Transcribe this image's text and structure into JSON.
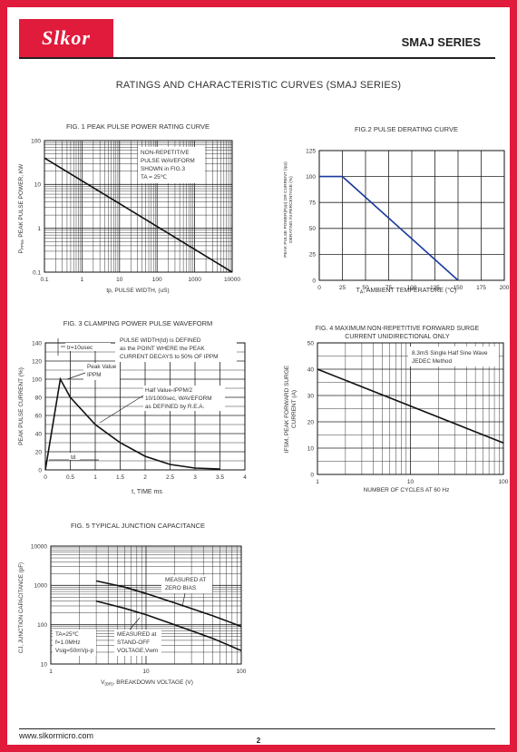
{
  "header": {
    "logo_text": "Slkor",
    "series_title": "SMAJ SERIES"
  },
  "section_heading": "RATINGS AND CHARACTERISTIC CURVES (SMAJ SERIES)",
  "footer": {
    "url": "www.slkormicro.com",
    "page_number": "2"
  },
  "chart_data": [
    {
      "id": "fig1",
      "type": "line",
      "title": "FIG. 1 PEAK PULSE POWER RATING CURVE",
      "xlabel_prefix": "tp, PULSE WIDTH, (uS)",
      "ylabel": "P",
      "ylabel_sub": "PPM",
      "ylabel_rest": ", PEAK PULSE POWER, KW",
      "xscale": "log",
      "yscale": "log",
      "xlim": [
        0.1,
        10000
      ],
      "ylim": [
        0.1,
        100
      ],
      "x_ticks": [
        "0.1",
        "1",
        "10",
        "100",
        "1000",
        "10000"
      ],
      "y_ticks": [
        "0.1",
        "1",
        "10",
        "100"
      ],
      "series": [
        {
          "x": [
            0.1,
            10000
          ],
          "y": [
            40,
            0.1
          ]
        }
      ],
      "annotation": [
        "NON-REPETITIVE",
        "PULSE WAVEFORM",
        "SHOWN in FIG.3",
        "TA = 25℃"
      ]
    },
    {
      "id": "fig2",
      "type": "line",
      "title": "FIG.2 PULSE DERATING CURVE",
      "xlabel_main": "T",
      "xlabel_sub": "A",
      "xlabel_rest": ", AMBIENT TEMPERATURE (°C)",
      "ylabel_line1": "PEAK PULSE POWER(Ppp) OR CURRENT (Ipp)",
      "ylabel_line2": "DERATING IN PERCENTAGE (%)",
      "xlim": [
        0,
        200
      ],
      "ylim": [
        0,
        125
      ],
      "x_ticks": [
        "0",
        "25",
        "50",
        "75",
        "100",
        "125",
        "150",
        "175",
        "200"
      ],
      "y_ticks": [
        "0",
        "25",
        "50",
        "75",
        "100",
        "125"
      ],
      "series": [
        {
          "x": [
            0,
            25,
            150
          ],
          "y": [
            100,
            100,
            0
          ]
        }
      ]
    },
    {
      "id": "fig3",
      "type": "line",
      "title": "FIG. 3 CLAMPING POWER PULSE WAVEFORM",
      "xlabel": "t, TIME ms",
      "ylabel": "PEAK PULSE CURRENT (%)",
      "xlim": [
        0,
        4
      ],
      "ylim": [
        0,
        140
      ],
      "x_ticks": [
        "0",
        "0.5",
        "1",
        "1.5",
        "2",
        "2.5",
        "3",
        "3.5",
        "4"
      ],
      "y_ticks": [
        "0",
        "20",
        "40",
        "60",
        "80",
        "100",
        "120",
        "140"
      ],
      "series": [
        {
          "x": [
            0,
            0.3,
            0.5,
            1,
            1.5,
            2,
            2.5,
            3,
            3.5
          ],
          "y": [
            0,
            100,
            80,
            50,
            30,
            15,
            6,
            2,
            1
          ]
        }
      ],
      "annotations": {
        "tr": "tr=10usec",
        "pulse_width": [
          "PULSE WIDTH(td) is DEFINED",
          "as the POINT WHERE the PEAK",
          "CURRENT DECAYS to 50% OF IPPM"
        ],
        "peak": [
          "Peak Value",
          "IPPM"
        ],
        "half": [
          "Half Value-IPPM/2",
          "10/1000sec, WAVEFORM",
          "as DEFINED by R.E.A."
        ],
        "td": "td"
      }
    },
    {
      "id": "fig4",
      "type": "line",
      "title": [
        "FIG. 4 MAXIMUM  NON-REPETITIVE FORWARD SURGE",
        "CURRENT UNIDIRECTIONAL ONLY"
      ],
      "xlabel": "NUMBER OF CYCLES AT 60 Hz",
      "ylabel": [
        "IFSM, PEAK FORWARD SURGE",
        "CURRENT (A)"
      ],
      "xscale": "log",
      "xlim": [
        1,
        100
      ],
      "ylim": [
        0,
        50
      ],
      "x_ticks": [
        "1",
        "10",
        "100"
      ],
      "y_ticks": [
        "0",
        "10",
        "20",
        "30",
        "40",
        "50"
      ],
      "series": [
        {
          "x": [
            1,
            100
          ],
          "y": [
            40,
            12
          ]
        }
      ],
      "annotation": [
        "8.3mS Single Half Sine Wave",
        "JEDEC Method"
      ]
    },
    {
      "id": "fig5",
      "type": "line",
      "title": "FIG. 5 TYPICAL JUNCTION CAPACITANCE",
      "xlabel_main": "V",
      "xlabel_sub": "(BR)",
      "xlabel_rest": ", BREAKDOWN VOLTAGE (V)",
      "ylabel": "CJ, JUNCTION CAPACITANCE (pF)",
      "xscale": "log",
      "yscale": "log",
      "xlim": [
        1,
        100
      ],
      "ylim": [
        10,
        10000
      ],
      "x_ticks": [
        "1",
        "10",
        "100"
      ],
      "y_ticks": [
        "10",
        "100",
        "1000",
        "10000"
      ],
      "series": [
        {
          "x": [
            3,
            6,
            10,
            20,
            50,
            100
          ],
          "y": [
            1300,
            900,
            620,
            360,
            170,
            90
          ]
        },
        {
          "x": [
            3,
            6,
            10,
            20,
            50,
            100
          ],
          "y": [
            400,
            260,
            180,
            100,
            45,
            22
          ]
        }
      ],
      "annotations": {
        "zero_bias": [
          "MEASURED AT",
          "ZERO BIAS"
        ],
        "standoff": [
          "MEASURED at",
          "STAND-OFF",
          "VOLTAGE,Vwm"
        ],
        "conditions": [
          "TA=25℃",
          "f=1.0MHz",
          "Vsig=50mVp-p"
        ]
      }
    }
  ]
}
